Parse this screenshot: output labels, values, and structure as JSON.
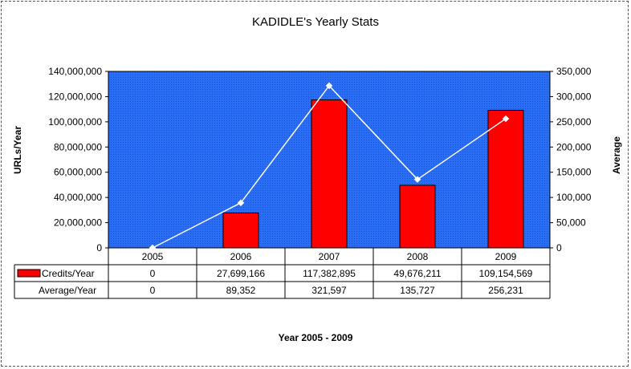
{
  "chart_data": {
    "type": "bar",
    "title": "KADIDLE's Yearly Stats",
    "xlabel": "Year 2005 - 2009",
    "ylabel": "URLs/Year",
    "y2label": "Average",
    "categories": [
      "2005",
      "2006",
      "2007",
      "2008",
      "2009"
    ],
    "ylim": [
      0,
      140000000
    ],
    "y2lim": [
      0,
      350000
    ],
    "yticks": [
      0,
      20000000,
      40000000,
      60000000,
      80000000,
      100000000,
      120000000,
      140000000
    ],
    "y2ticks": [
      0,
      50000,
      100000,
      150000,
      200000,
      250000,
      300000,
      350000
    ],
    "ytick_labels": [
      "0",
      "20,000,000",
      "40,000,000",
      "60,000,000",
      "80,000,000",
      "100,000,000",
      "120,000,000",
      "140,000,000"
    ],
    "y2tick_labels": [
      "0",
      "50,000",
      "100,000",
      "150,000",
      "200,000",
      "250,000",
      "300,000",
      "350,000"
    ],
    "series": [
      {
        "name": "Credits/Year",
        "kind": "bar",
        "axis": "left",
        "color": "#ff0000",
        "values": [
          0,
          27699166,
          117382895,
          49676211,
          109154569
        ],
        "labels": [
          "0",
          "27,699,166",
          "117,382,895",
          "49,676,211",
          "109,154,569"
        ]
      },
      {
        "name": "Average/Year",
        "kind": "line",
        "axis": "right",
        "color": "#ffffff",
        "values": [
          0,
          89352,
          321597,
          135727,
          256231
        ],
        "labels": [
          "0",
          "89,352",
          "321,597",
          "135,727",
          "256,231"
        ]
      }
    ],
    "plot_background": "#2a6ef5",
    "grid": false,
    "legend": "data-table"
  }
}
